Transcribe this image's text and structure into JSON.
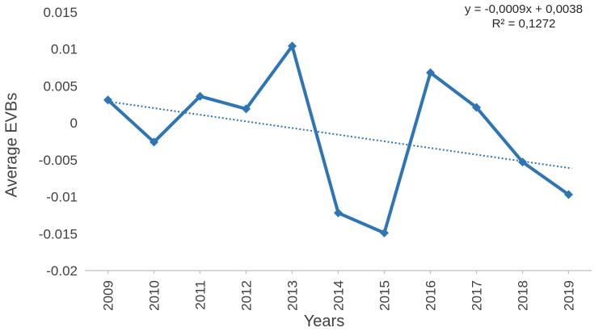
{
  "chart_data": {
    "type": "line",
    "title": "",
    "xlabel": "Years",
    "ylabel": "Average EVBs",
    "categories": [
      "2009",
      "2010",
      "2011",
      "2012",
      "2013",
      "2014",
      "2015",
      "2016",
      "2017",
      "2018",
      "2019"
    ],
    "series": [
      {
        "name": "Average EVBs",
        "values": [
          0.0031,
          -0.0026,
          0.0036,
          0.0019,
          0.0104,
          -0.0122,
          -0.0149,
          0.0068,
          0.0021,
          -0.0053,
          -0.0097
        ]
      }
    ],
    "trendline": {
      "slope": -0.0009,
      "intercept": 0.0038,
      "equation": "y = -0,0009x + 0,0038",
      "r_squared": "R² = 0,1272",
      "style": "dotted"
    },
    "ylim": [
      -0.02,
      0.015
    ],
    "ytick_labels": [
      "0.015",
      "0.01",
      "0.005",
      "0",
      "-0.005",
      "-0.01",
      "-0.015",
      "-0.02"
    ],
    "grid": false,
    "legend": "none",
    "marker": "diamond",
    "colors": {
      "series": "#2E75B6",
      "trendline": "#2E75B6",
      "axis": "#BFBFBF",
      "text": "#404040",
      "annotation": "#262626"
    }
  }
}
